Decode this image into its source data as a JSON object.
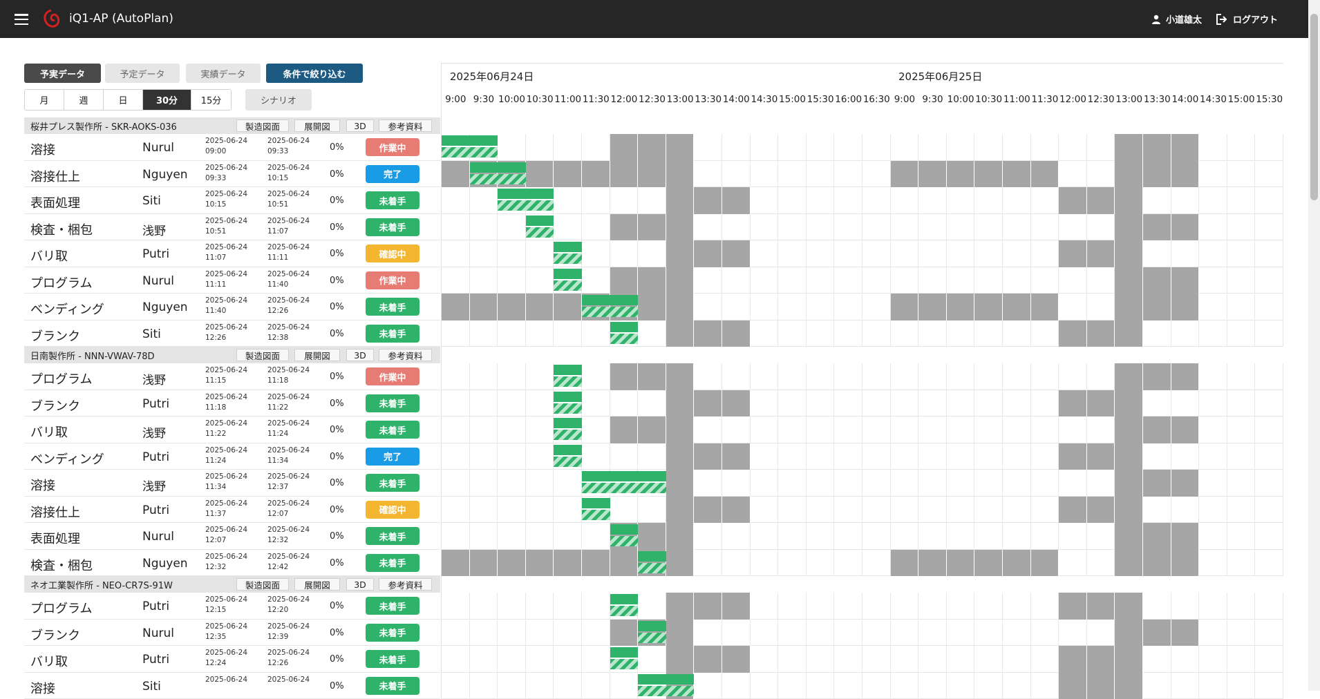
{
  "app": {
    "title": "iQ1-AP (AutoPlan)",
    "user": "小道雄太",
    "logout": "ログアウト"
  },
  "toolbar": {
    "data_tabs": [
      "予実データ",
      "予定データ",
      "実績データ"
    ],
    "filter_button": "条件で絞り込む",
    "ranges": [
      "月",
      "週",
      "日",
      "30分",
      "15分"
    ],
    "active_range": "30分",
    "scenario": "シナリオ"
  },
  "group_buttons": [
    "製造図面",
    "展開図",
    "3D",
    "参考資料"
  ],
  "dates": [
    "2025年06月24日",
    "2025年06月25日"
  ],
  "time_slots": [
    "9:00",
    "9:30",
    "10:00",
    "10:30",
    "11:00",
    "11:30",
    "12:00",
    "12:30",
    "13:00",
    "13:30",
    "14:00",
    "14:30",
    "15:00",
    "15:30",
    "16:00",
    "16:30",
    "9:00",
    "9:30",
    "10:00",
    "10:30",
    "11:00",
    "11:30",
    "12:00",
    "12:30",
    "13:00",
    "13:30",
    "14:00",
    "14:30",
    "15:00",
    "15:30"
  ],
  "status_colors": {
    "作業中": "#e67c73",
    "完了": "#1a9be6",
    "未着手": "#2fb36b",
    "確認中": "#f4b631"
  },
  "groups": [
    {
      "name": "桜井プレス製作所 - SKR-AOKS-036",
      "rows": [
        {
          "process": "溶接",
          "worker": "Nurul",
          "start_date": "2025-06-24",
          "start_time": "09:00",
          "end_date": "2025-06-24",
          "end_time": "09:33",
          "progress": "0%",
          "status": "作業中"
        },
        {
          "process": "溶接仕上",
          "worker": "Nguyen",
          "start_date": "2025-06-24",
          "start_time": "09:33",
          "end_date": "2025-06-24",
          "end_time": "10:15",
          "progress": "0%",
          "status": "完了"
        },
        {
          "process": "表面処理",
          "worker": "Siti",
          "start_date": "2025-06-24",
          "start_time": "10:15",
          "end_date": "2025-06-24",
          "end_time": "10:51",
          "progress": "0%",
          "status": "未着手"
        },
        {
          "process": "検査・梱包",
          "worker": "浅野",
          "start_date": "2025-06-24",
          "start_time": "10:51",
          "end_date": "2025-06-24",
          "end_time": "11:07",
          "progress": "0%",
          "status": "未着手"
        },
        {
          "process": "バリ取",
          "worker": "Putri",
          "start_date": "2025-06-24",
          "start_time": "11:07",
          "end_date": "2025-06-24",
          "end_time": "11:11",
          "progress": "0%",
          "status": "確認中"
        },
        {
          "process": "プログラム",
          "worker": "Nurul",
          "start_date": "2025-06-24",
          "start_time": "11:11",
          "end_date": "2025-06-24",
          "end_time": "11:40",
          "progress": "0%",
          "status": "作業中"
        },
        {
          "process": "ベンディング",
          "worker": "Nguyen",
          "start_date": "2025-06-24",
          "start_time": "11:40",
          "end_date": "2025-06-24",
          "end_time": "12:26",
          "progress": "0%",
          "status": "未着手"
        },
        {
          "process": "ブランク",
          "worker": "Siti",
          "start_date": "2025-06-24",
          "start_time": "12:26",
          "end_date": "2025-06-24",
          "end_time": "12:38",
          "progress": "0%",
          "status": "未着手"
        }
      ]
    },
    {
      "name": "日南製作所 - NNN-VWAV-78D",
      "rows": [
        {
          "process": "プログラム",
          "worker": "浅野",
          "start_date": "2025-06-24",
          "start_time": "11:15",
          "end_date": "2025-06-24",
          "end_time": "11:18",
          "progress": "0%",
          "status": "作業中"
        },
        {
          "process": "ブランク",
          "worker": "Putri",
          "start_date": "2025-06-24",
          "start_time": "11:18",
          "end_date": "2025-06-24",
          "end_time": "11:22",
          "progress": "0%",
          "status": "未着手"
        },
        {
          "process": "バリ取",
          "worker": "浅野",
          "start_date": "2025-06-24",
          "start_time": "11:22",
          "end_date": "2025-06-24",
          "end_time": "11:24",
          "progress": "0%",
          "status": "未着手"
        },
        {
          "process": "ベンディング",
          "worker": "Putri",
          "start_date": "2025-06-24",
          "start_time": "11:24",
          "end_date": "2025-06-24",
          "end_time": "11:34",
          "progress": "0%",
          "status": "完了"
        },
        {
          "process": "溶接",
          "worker": "浅野",
          "start_date": "2025-06-24",
          "start_time": "11:34",
          "end_date": "2025-06-24",
          "end_time": "12:37",
          "progress": "0%",
          "status": "未着手"
        },
        {
          "process": "溶接仕上",
          "worker": "Putri",
          "start_date": "2025-06-24",
          "start_time": "11:37",
          "end_date": "2025-06-24",
          "end_time": "12:07",
          "progress": "0%",
          "status": "確認中"
        },
        {
          "process": "表面処理",
          "worker": "Nurul",
          "start_date": "2025-06-24",
          "start_time": "12:07",
          "end_date": "2025-06-24",
          "end_time": "12:32",
          "progress": "0%",
          "status": "未着手"
        },
        {
          "process": "検査・梱包",
          "worker": "Nguyen",
          "start_date": "2025-06-24",
          "start_time": "12:32",
          "end_date": "2025-06-24",
          "end_time": "12:42",
          "progress": "0%",
          "status": "未着手"
        }
      ]
    },
    {
      "name": "ネオ工業製作所 - NEO-CR7S-91W",
      "rows": [
        {
          "process": "プログラム",
          "worker": "Putri",
          "start_date": "2025-06-24",
          "start_time": "12:15",
          "end_date": "2025-06-24",
          "end_time": "12:20",
          "progress": "0%",
          "status": "未着手"
        },
        {
          "process": "ブランク",
          "worker": "Nurul",
          "start_date": "2025-06-24",
          "start_time": "12:35",
          "end_date": "2025-06-24",
          "end_time": "12:39",
          "progress": "0%",
          "status": "未着手"
        },
        {
          "process": "バリ取",
          "worker": "Putri",
          "start_date": "2025-06-24",
          "start_time": "12:24",
          "end_date": "2025-06-24",
          "end_time": "12:26",
          "progress": "0%",
          "status": "未着手"
        },
        {
          "process": "溶接",
          "worker": "Siti",
          "start_date": "2025-06-24",
          "start_time": "",
          "end_date": "2025-06-24",
          "end_time": "",
          "progress": "0%",
          "status": "未着手"
        }
      ]
    }
  ],
  "gantt_rows": [
    [
      {
        "off": [
          6,
          7,
          8,
          24,
          25,
          26
        ],
        "plan": [
          0,
          2
        ],
        "act": [
          0,
          2
        ]
      },
      {
        "off": [
          0,
          1,
          2,
          3,
          4,
          5,
          6,
          7,
          8,
          16,
          17,
          18,
          19,
          20,
          21,
          24,
          25,
          26
        ],
        "plan": [
          1,
          3
        ],
        "act": [
          1,
          3
        ]
      },
      {
        "off": [
          8,
          9,
          10,
          22,
          23,
          24
        ],
        "plan": [
          2,
          4
        ],
        "act": [
          2,
          4
        ]
      },
      {
        "off": [
          6,
          7,
          8,
          24,
          25,
          26
        ],
        "plan": [
          3,
          4
        ],
        "act": [
          3,
          4
        ]
      },
      {
        "off": [
          8,
          9,
          10,
          22,
          23,
          24
        ],
        "plan": [
          4,
          5
        ],
        "act": [
          4,
          5
        ]
      },
      {
        "off": [
          6,
          7,
          8,
          24,
          25,
          26
        ],
        "plan": [
          4,
          5
        ],
        "act": [
          4,
          5
        ]
      },
      {
        "off": [
          0,
          1,
          2,
          3,
          4,
          5,
          6,
          7,
          8,
          16,
          17,
          18,
          19,
          20,
          21,
          24,
          25,
          26
        ],
        "plan": [
          5,
          7
        ],
        "act": [
          5,
          7
        ]
      },
      {
        "off": [
          8,
          9,
          10,
          22,
          23,
          24
        ],
        "plan": [
          6,
          7
        ],
        "act": [
          6,
          7
        ]
      }
    ],
    [
      {
        "off": [
          6,
          7,
          8,
          24,
          25,
          26
        ],
        "plan": [
          4,
          5
        ],
        "act": [
          4,
          5
        ]
      },
      {
        "off": [
          8,
          9,
          10,
          22,
          23,
          24
        ],
        "plan": [
          4,
          5
        ],
        "act": [
          4,
          5
        ]
      },
      {
        "off": [
          6,
          7,
          8,
          24,
          25,
          26
        ],
        "plan": [
          4,
          5
        ],
        "act": [
          4,
          5
        ]
      },
      {
        "off": [
          8,
          9,
          10,
          22,
          23,
          24
        ],
        "plan": [
          4,
          5
        ],
        "act": [
          4,
          5
        ]
      },
      {
        "off": [
          8,
          24,
          25,
          26
        ],
        "plan": [
          5,
          8
        ],
        "act": [
          5,
          8
        ]
      },
      {
        "off": [
          8,
          9,
          10,
          22,
          23,
          24
        ],
        "plan": [
          5,
          6
        ],
        "act": [
          5,
          6
        ]
      },
      {
        "off": [
          6,
          7,
          8,
          24,
          25,
          26
        ],
        "plan": [
          6,
          7
        ],
        "act": [
          6,
          7
        ]
      },
      {
        "off": [
          0,
          1,
          2,
          3,
          4,
          5,
          6,
          7,
          8,
          16,
          17,
          18,
          19,
          20,
          21,
          24,
          25,
          26
        ],
        "plan": [
          7,
          8
        ],
        "act": [
          7,
          8
        ]
      }
    ],
    [
      {
        "off": [
          8,
          9,
          10,
          22,
          23,
          24
        ],
        "plan": [
          6,
          7
        ],
        "act": [
          6,
          7
        ]
      },
      {
        "off": [
          6,
          7,
          8,
          24,
          25,
          26
        ],
        "plan": [
          7,
          8
        ],
        "act": [
          7,
          8
        ]
      },
      {
        "off": [
          8,
          9,
          10,
          22,
          23,
          24
        ],
        "plan": [
          6,
          7
        ],
        "act": [
          6,
          7
        ]
      },
      {
        "off": [
          8,
          22,
          23,
          24
        ],
        "plan": [
          7,
          9
        ],
        "act": [
          7,
          9
        ]
      }
    ]
  ]
}
